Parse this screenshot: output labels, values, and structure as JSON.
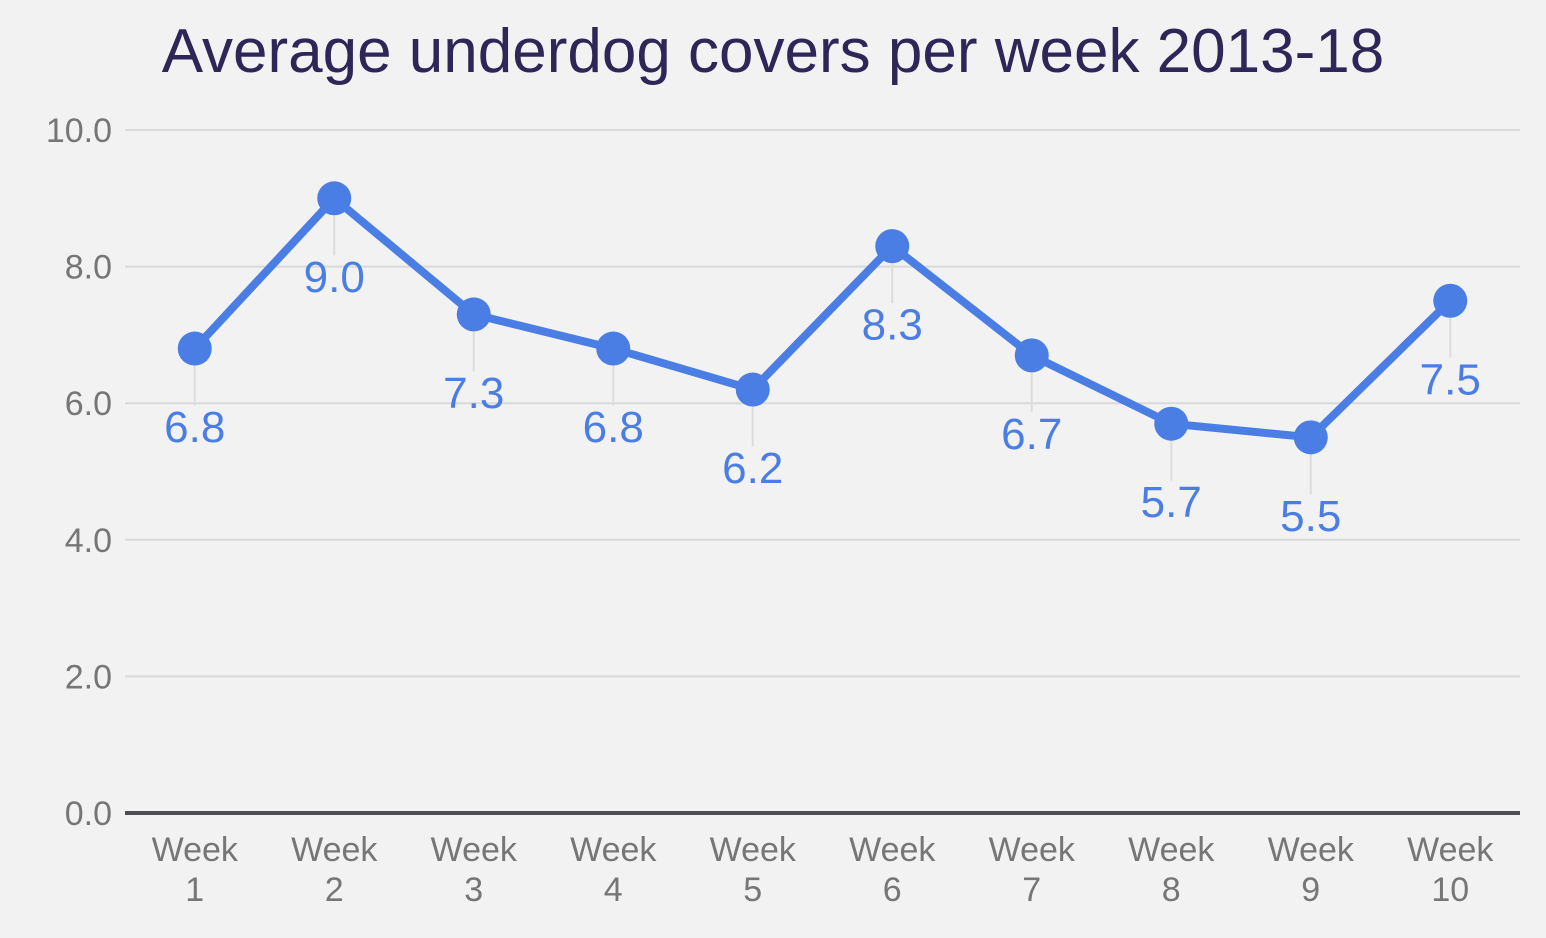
{
  "chart_data": {
    "type": "line",
    "title": "Average underdog covers per week 2013-18",
    "categories": [
      "Week 1",
      "Week 2",
      "Week 3",
      "Week 4",
      "Week 5",
      "Week 6",
      "Week 7",
      "Week 8",
      "Week 9",
      "Week 10"
    ],
    "values": [
      6.8,
      9.0,
      7.3,
      6.8,
      6.2,
      8.3,
      6.7,
      5.7,
      5.5,
      7.5
    ],
    "point_labels": [
      "6.8",
      "9.0",
      "7.3",
      "6.8",
      "6.2",
      "8.3",
      "6.7",
      "5.7",
      "5.5",
      "7.5"
    ],
    "y_ticks": [
      {
        "label": "0.0",
        "value": 0
      },
      {
        "label": "2.0",
        "value": 2
      },
      {
        "label": "4.0",
        "value": 4
      },
      {
        "label": "6.0",
        "value": 6
      },
      {
        "label": "8.0",
        "value": 8
      },
      {
        "label": "10.0",
        "value": 10
      }
    ],
    "xlabel": "",
    "ylabel": "",
    "ylim": [
      0,
      10
    ],
    "grid": true,
    "legend_position": "none",
    "colors": {
      "series": "#4a7ee5",
      "title": "#2e2657",
      "axis_text": "#767676",
      "gridline": "#d9d9d9",
      "zero_line": "#4f4f51",
      "leader_line": "#dcdcdc",
      "background": "#f2f2f3"
    }
  }
}
